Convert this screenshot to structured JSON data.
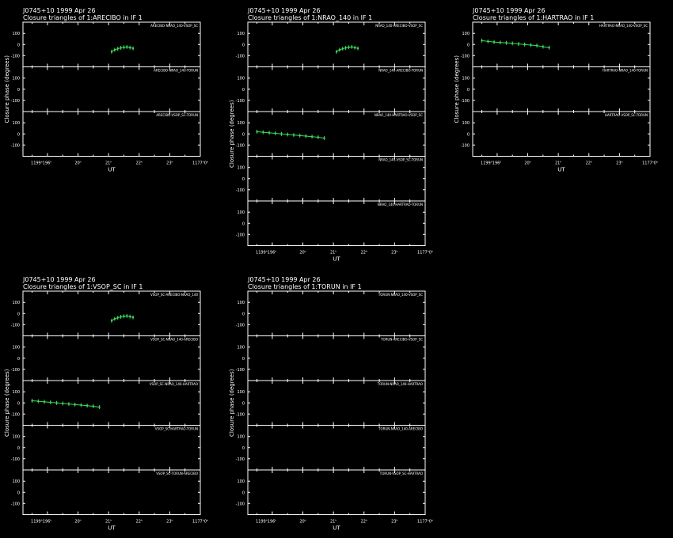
{
  "style": {
    "background": "#000000",
    "foreground": "#ffffff",
    "trace": "#3cdc5a"
  },
  "common": {
    "source": "J0745+10",
    "date": "1999 Apr 26",
    "ylabel": "Closure phase   (degrees)",
    "xlabel": "UT",
    "xticks": [
      "1199ʰ196ʰ",
      "20ʰ",
      "21ʰ",
      "22ʰ",
      "23ʰ",
      "1177ʰ0ʰ"
    ],
    "yticks": [
      "100",
      "0",
      "-100"
    ]
  },
  "panels": [
    {
      "subtitle": "Closure triangles of 1:ARECIBO in IF 1",
      "tri_labels": [
        "ARECIBO-NRAO_140-VSOP_SC",
        "ARECIBO-NRAO_140-TORUN",
        "ARECIBO-VSOP_SC-TORUN"
      ]
    },
    {
      "subtitle": "Closure triangles of 1:NRAO_140 in IF 1",
      "tri_labels": [
        "NRAO_140-ARECIBO-VSOP_SC",
        "NRAO_140-ARECIBO-TORUN",
        "NRAO_140-HARTRAO-VSOP_SC",
        "NRAO_140-VSOP_SC-TORUN",
        "NRAO_140-HARTRAO-TORUN"
      ]
    },
    {
      "subtitle": "Closure triangles of 1:HARTRAO in IF 1",
      "tri_labels": [
        "HARTRAO-NRAO_140-VSOP_SC",
        "HARTRAO-NRAO_140-TORUN",
        "HARTRAO-VSOP_SC-TORUN"
      ]
    },
    {
      "subtitle": "Closure triangles of 1:VSOP_SC in IF 1",
      "tri_labels": [
        "VSOP_SC-ARECIBO-NRAO_140",
        "VSOP_SC-NRAO_140-ARECIBO",
        "VSOP_SC-NRAO_140-HARTRAO",
        "VSOP_SC-HARTRAO-TORUN",
        "VSOP_SC-TORUN-ARECIBO"
      ]
    },
    {
      "subtitle": "Closure triangles of 1:TORUN in IF 1",
      "tri_labels": [
        "TORUN-NRAO_140-VSOP_SC",
        "TORUN-ARECIBO-VSOP_SC",
        "TORUN-NRAO_140-HARTRAO",
        "TORUN-NRAO_140-ARECIBO",
        "TORUN-VSOP_SC-HARTRAO"
      ]
    }
  ],
  "chart_data": [
    {
      "type": "scatter",
      "title": "J0745+10  1999 Apr 26",
      "subtitle": "Closure triangles of 1:ARECIBO in IF 1",
      "xlabel": "UT",
      "ylabel": "Closure phase   (degrees)",
      "xlim": [
        18.2,
        24.0
      ],
      "ylim": [
        -180,
        180
      ],
      "series": [
        {
          "name": "ARECIBO-NRAO_140-VSOP_SC",
          "points": [
            [
              21.1,
              -65
            ],
            [
              21.2,
              -48
            ],
            [
              21.3,
              -38
            ],
            [
              21.4,
              -30
            ],
            [
              21.5,
              -25
            ],
            [
              21.6,
              -22
            ],
            [
              21.7,
              -28
            ],
            [
              21.8,
              -35
            ]
          ]
        },
        {
          "name": "ARECIBO-NRAO_140-TORUN",
          "points": []
        },
        {
          "name": "ARECIBO-VSOP_SC-TORUN",
          "points": []
        }
      ]
    },
    {
      "type": "scatter",
      "title": "J0745+10  1999 Apr 26",
      "subtitle": "Closure triangles of 1:NRAO_140 in IF 1",
      "xlabel": "UT",
      "ylabel": "Closure phase   (degrees)",
      "xlim": [
        18.2,
        24.0
      ],
      "ylim": [
        -180,
        180
      ],
      "series": [
        {
          "name": "NRAO_140-ARECIBO-VSOP_SC",
          "points": [
            [
              21.1,
              -65
            ],
            [
              21.2,
              -48
            ],
            [
              21.3,
              -38
            ],
            [
              21.4,
              -30
            ],
            [
              21.5,
              -25
            ],
            [
              21.6,
              -22
            ],
            [
              21.7,
              -28
            ],
            [
              21.8,
              -35
            ]
          ]
        },
        {
          "name": "NRAO_140-ARECIBO-TORUN",
          "points": []
        },
        {
          "name": "NRAO_140-HARTRAO-VSOP_SC",
          "points": [
            [
              18.5,
              20
            ],
            [
              18.7,
              15
            ],
            [
              18.9,
              10
            ],
            [
              19.1,
              5
            ],
            [
              19.3,
              0
            ],
            [
              19.5,
              -5
            ],
            [
              19.7,
              -10
            ],
            [
              19.9,
              -15
            ],
            [
              20.1,
              -20
            ],
            [
              20.3,
              -25
            ],
            [
              20.5,
              -30
            ],
            [
              20.7,
              -38
            ]
          ]
        },
        {
          "name": "NRAO_140-VSOP_SC-TORUN",
          "points": []
        },
        {
          "name": "NRAO_140-HARTRAO-TORUN",
          "points": []
        }
      ]
    },
    {
      "type": "scatter",
      "title": "J0745+10  1999 Apr 26",
      "subtitle": "Closure triangles of 1:HARTRAO in IF 1",
      "xlabel": "UT",
      "ylabel": "Closure phase   (degrees)",
      "xlim": [
        18.2,
        24.0
      ],
      "ylim": [
        -180,
        180
      ],
      "series": [
        {
          "name": "HARTRAO-NRAO_140-VSOP_SC",
          "points": [
            [
              18.5,
              35
            ],
            [
              18.7,
              28
            ],
            [
              18.9,
              22
            ],
            [
              19.1,
              18
            ],
            [
              19.3,
              15
            ],
            [
              19.5,
              10
            ],
            [
              19.7,
              5
            ],
            [
              19.9,
              0
            ],
            [
              20.1,
              -5
            ],
            [
              20.3,
              -10
            ],
            [
              20.5,
              -20
            ],
            [
              20.7,
              -28
            ]
          ]
        },
        {
          "name": "HARTRAO-NRAO_140-TORUN",
          "points": []
        },
        {
          "name": "HARTRAO-VSOP_SC-TORUN",
          "points": []
        }
      ]
    },
    {
      "type": "scatter",
      "title": "J0745+10  1999 Apr 26",
      "subtitle": "Closure triangles of 1:VSOP_SC in IF 1",
      "xlabel": "UT",
      "ylabel": "Closure phase   (degrees)",
      "xlim": [
        18.2,
        24.0
      ],
      "ylim": [
        -180,
        180
      ],
      "series": [
        {
          "name": "VSOP_SC-ARECIBO-NRAO_140",
          "points": [
            [
              21.1,
              -65
            ],
            [
              21.2,
              -48
            ],
            [
              21.3,
              -38
            ],
            [
              21.4,
              -30
            ],
            [
              21.5,
              -25
            ],
            [
              21.6,
              -22
            ],
            [
              21.7,
              -28
            ],
            [
              21.8,
              -35
            ]
          ]
        },
        {
          "name": "VSOP_SC-NRAO_140-ARECIBO",
          "points": []
        },
        {
          "name": "VSOP_SC-NRAO_140-HARTRAO",
          "points": [
            [
              18.5,
              20
            ],
            [
              18.7,
              15
            ],
            [
              18.9,
              10
            ],
            [
              19.1,
              5
            ],
            [
              19.3,
              0
            ],
            [
              19.5,
              -5
            ],
            [
              19.7,
              -10
            ],
            [
              19.9,
              -15
            ],
            [
              20.1,
              -20
            ],
            [
              20.3,
              -25
            ],
            [
              20.5,
              -30
            ],
            [
              20.7,
              -38
            ]
          ]
        },
        {
          "name": "VSOP_SC-HARTRAO-TORUN",
          "points": []
        },
        {
          "name": "VSOP_SC-TORUN-ARECIBO",
          "points": []
        }
      ]
    },
    {
      "type": "scatter",
      "title": "J0745+10  1999 Apr 26",
      "subtitle": "Closure triangles of 1:TORUN in IF 1",
      "xlabel": "UT",
      "ylabel": "Closure phase   (degrees)",
      "xlim": [
        18.2,
        24.0
      ],
      "ylim": [
        -180,
        180
      ],
      "series": [
        {
          "name": "TORUN-NRAO_140-VSOP_SC",
          "points": []
        },
        {
          "name": "TORUN-ARECIBO-VSOP_SC",
          "points": []
        },
        {
          "name": "TORUN-NRAO_140-HARTRAO",
          "points": []
        },
        {
          "name": "TORUN-NRAO_140-ARECIBO",
          "points": []
        },
        {
          "name": "TORUN-VSOP_SC-HARTRAO",
          "points": []
        }
      ]
    }
  ]
}
